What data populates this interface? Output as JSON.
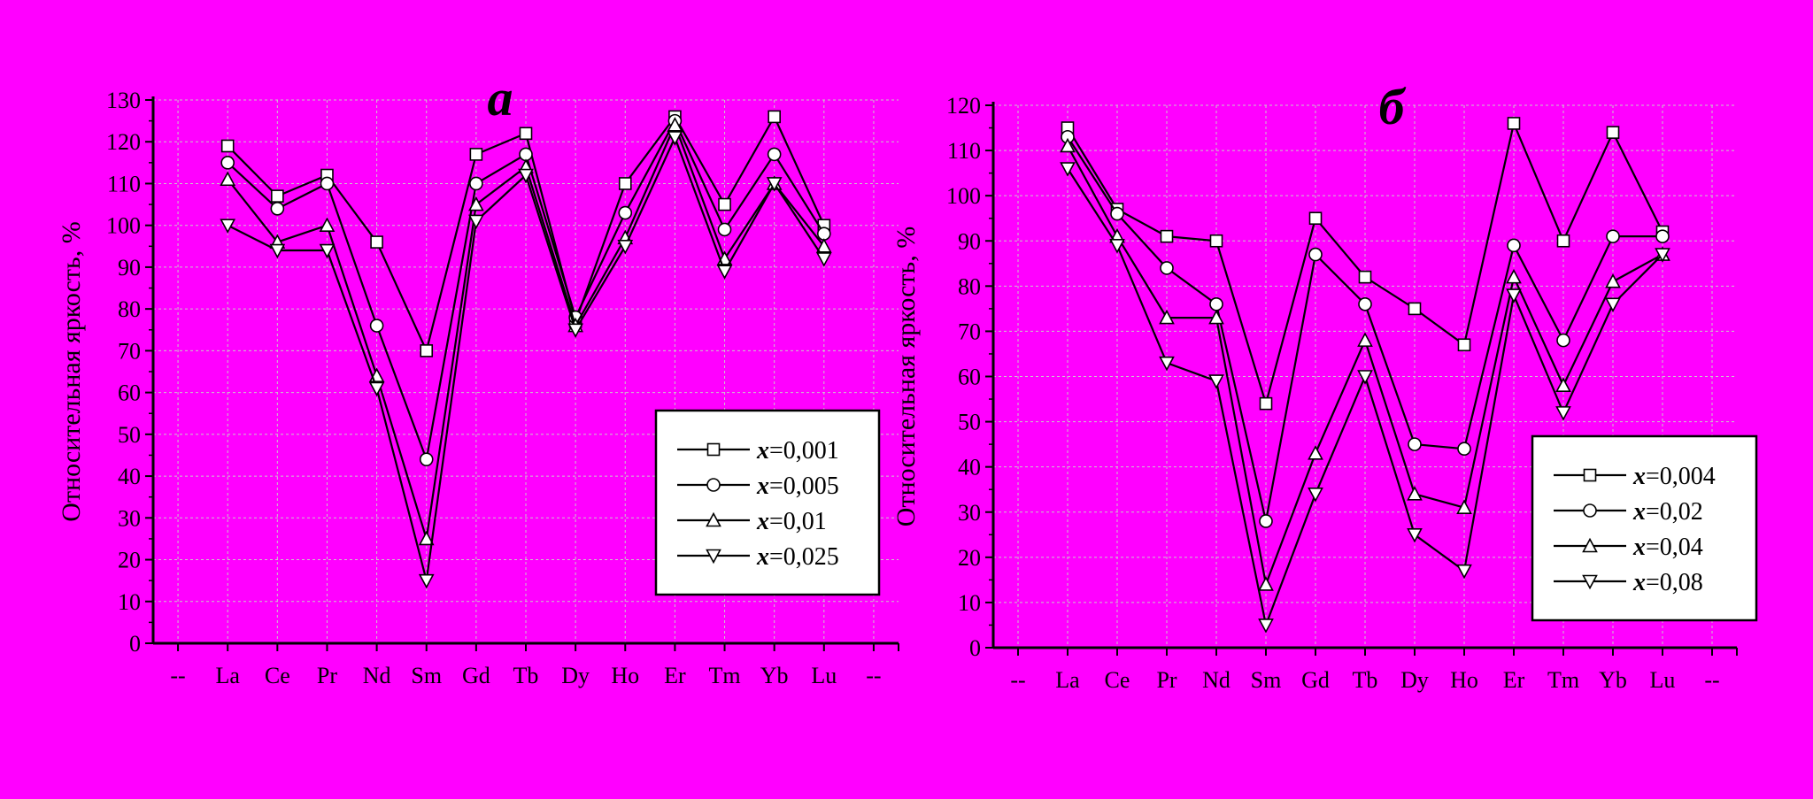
{
  "colors": {
    "background": "#ff00ff",
    "axis": "#000000",
    "grid": "#c9c9c9",
    "series_line": "#000000",
    "marker_fill": "#ffffff",
    "legend_bg": "#ffffff"
  },
  "chart_data": [
    {
      "type": "line",
      "title": "a",
      "ylabel": "Относительная яркость, %",
      "xlabel": "",
      "categories": [
        "--",
        "La",
        "Ce",
        "Pr",
        "Nd",
        "Sm",
        "Gd",
        "Tb",
        "Dy",
        "Ho",
        "Er",
        "Tm",
        "Yb",
        "Lu",
        "--"
      ],
      "ylim": [
        0,
        130
      ],
      "yticks": [
        0,
        10,
        20,
        30,
        40,
        50,
        60,
        70,
        80,
        90,
        100,
        110,
        120,
        130
      ],
      "grid": true,
      "legend_position": "bottom-right",
      "series": [
        {
          "name": "=0,001",
          "name_var": "x",
          "marker": "square",
          "values": [
            null,
            119,
            107,
            112,
            96,
            70,
            117,
            122,
            77,
            110,
            126,
            105,
            126,
            100,
            null
          ]
        },
        {
          "name": "=0,005",
          "name_var": "x",
          "marker": "circle",
          "values": [
            null,
            115,
            104,
            110,
            76,
            44,
            110,
            117,
            78,
            103,
            125,
            99,
            117,
            98,
            null
          ]
        },
        {
          "name": "=0,01",
          "name_var": "x",
          "marker": "triangle-up",
          "values": [
            null,
            111,
            96,
            100,
            64,
            25,
            105,
            114,
            76,
            97,
            124,
            92,
            110,
            95,
            null
          ]
        },
        {
          "name": "=0,025",
          "name_var": "x",
          "marker": "triangle-down",
          "values": [
            null,
            100,
            94,
            94,
            61,
            15,
            101,
            112,
            75,
            95,
            121,
            89,
            110,
            92,
            null
          ]
        }
      ]
    },
    {
      "type": "line",
      "title": "б",
      "ylabel": "Относительная яркость, %",
      "xlabel": "",
      "categories": [
        "--",
        "La",
        "Ce",
        "Pr",
        "Nd",
        "Sm",
        "Gd",
        "Tb",
        "Dy",
        "Ho",
        "Er",
        "Tm",
        "Yb",
        "Lu",
        "--"
      ],
      "ylim": [
        0,
        120
      ],
      "yticks": [
        0,
        10,
        20,
        30,
        40,
        50,
        60,
        70,
        80,
        90,
        100,
        110,
        120
      ],
      "grid": true,
      "legend_position": "bottom-right",
      "series": [
        {
          "name": "=0,004",
          "name_var": "x",
          "marker": "square",
          "values": [
            null,
            115,
            97,
            91,
            90,
            54,
            95,
            82,
            75,
            67,
            116,
            90,
            114,
            92,
            null
          ]
        },
        {
          "name": "=0,02",
          "name_var": "x",
          "marker": "circle",
          "values": [
            null,
            113,
            96,
            84,
            76,
            28,
            87,
            76,
            45,
            44,
            89,
            68,
            91,
            91,
            null
          ]
        },
        {
          "name": "=0,04",
          "name_var": "x",
          "marker": "triangle-up",
          "values": [
            null,
            111,
            91,
            73,
            73,
            14,
            43,
            68,
            34,
            31,
            82,
            58,
            81,
            87,
            null
          ]
        },
        {
          "name": "=0,08",
          "name_var": "x",
          "marker": "triangle-down",
          "values": [
            null,
            106,
            89,
            63,
            59,
            5,
            34,
            60,
            25,
            17,
            78,
            52,
            76,
            87,
            null
          ]
        }
      ]
    }
  ]
}
